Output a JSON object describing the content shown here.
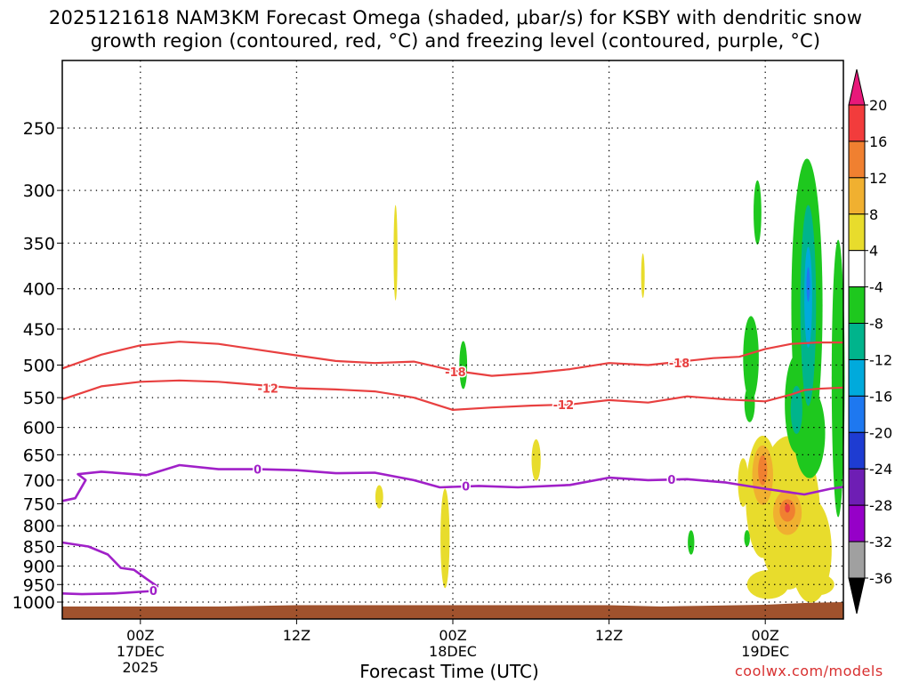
{
  "title_line1": "2025121618 NAM3KM Forecast Omega (shaded, μbar/s) for KSBY with dendritic snow",
  "title_line2": "growth region (contoured, red, °C) and freezing level (contoured, purple, °C)",
  "xlabel": "Forecast Time (UTC)",
  "credit": "coolwx.com/models",
  "chart_data": {
    "type": "area",
    "x_range_hours_from_start": [
      0,
      60
    ],
    "yaxis": {
      "type": "pressure (log scale, inverted)",
      "ticks": [
        250,
        300,
        350,
        400,
        450,
        500,
        550,
        600,
        650,
        700,
        750,
        800,
        850,
        900,
        950,
        1000
      ]
    },
    "xaxis_ticks": [
      {
        "hour": 6,
        "lines": [
          "00Z",
          "17DEC",
          "2025"
        ]
      },
      {
        "hour": 18,
        "lines": [
          "12Z"
        ]
      },
      {
        "hour": 30,
        "lines": [
          "00Z",
          "18DEC"
        ]
      },
      {
        "hour": 42,
        "lines": [
          "12Z"
        ]
      },
      {
        "hour": 54,
        "lines": [
          "00Z",
          "19DEC"
        ]
      }
    ],
    "colorbar": {
      "labels": [
        "20",
        "16",
        "12",
        "8",
        "4",
        "-4",
        "-8",
        "-12",
        "-16",
        "-20",
        "-24",
        "-28",
        "-32",
        "-36"
      ],
      "colors": [
        "#e8187a",
        "#f23c3c",
        "#f08030",
        "#f0b030",
        "#e8dc2c",
        "#ffffff",
        "#1ec81e",
        "#00b48c",
        "#00aadc",
        "#1e78f0",
        "#1e3cd2",
        "#6e1eb4",
        "#9600c8",
        "#a0a0a0",
        "#000000"
      ]
    },
    "contours": [
      {
        "label": "-18",
        "color": "#e84040",
        "points": [
          [
            0,
            505
          ],
          [
            3,
            485
          ],
          [
            6,
            472
          ],
          [
            9,
            467
          ],
          [
            12,
            470
          ],
          [
            15,
            478
          ],
          [
            18,
            486
          ],
          [
            21,
            494
          ],
          [
            24,
            497
          ],
          [
            27,
            495
          ],
          [
            30,
            508
          ],
          [
            33,
            516
          ],
          [
            36,
            512
          ],
          [
            39,
            506
          ],
          [
            42,
            497
          ],
          [
            45,
            500
          ],
          [
            47,
            496
          ],
          [
            50,
            490
          ],
          [
            52,
            488
          ],
          [
            54,
            477
          ],
          [
            56,
            470
          ],
          [
            58,
            468
          ],
          [
            60,
            468
          ]
        ]
      },
      {
        "label": "-12",
        "color": "#e84040",
        "points": [
          [
            0,
            553
          ],
          [
            3,
            532
          ],
          [
            6,
            525
          ],
          [
            9,
            523
          ],
          [
            12,
            525
          ],
          [
            15,
            530
          ],
          [
            18,
            535
          ],
          [
            21,
            537
          ],
          [
            24,
            540
          ],
          [
            27,
            550
          ],
          [
            30,
            570
          ],
          [
            33,
            566
          ],
          [
            36,
            563
          ],
          [
            39,
            561
          ],
          [
            42,
            554
          ],
          [
            45,
            558
          ],
          [
            48,
            548
          ],
          [
            51,
            553
          ],
          [
            54,
            556
          ],
          [
            56,
            545
          ],
          [
            57,
            538
          ],
          [
            58,
            536
          ],
          [
            60,
            534
          ]
        ]
      },
      {
        "label": "0",
        "color": "#a020c8",
        "points": [
          [
            6.5,
            690
          ],
          [
            9,
            670
          ],
          [
            12,
            678
          ],
          [
            15,
            678
          ],
          [
            18,
            680
          ],
          [
            21,
            686
          ],
          [
            24,
            685
          ],
          [
            27,
            700
          ],
          [
            29,
            715
          ],
          [
            32,
            712
          ],
          [
            35,
            715
          ],
          [
            39,
            710
          ],
          [
            42,
            695
          ],
          [
            45,
            700
          ],
          [
            48,
            698
          ],
          [
            51,
            705
          ],
          [
            54,
            718
          ],
          [
            57,
            730
          ],
          [
            59,
            718
          ],
          [
            60,
            714
          ]
        ]
      },
      {
        "label": "0",
        "color": "#a020c8",
        "points": [
          [
            0,
            744
          ],
          [
            1,
            738
          ],
          [
            1.8,
            700
          ],
          [
            1.2,
            688
          ],
          [
            3,
            683
          ],
          [
            6.5,
            690
          ]
        ]
      },
      {
        "label": "0",
        "color": "#a020c8",
        "points": [
          [
            0,
            840
          ],
          [
            2,
            850
          ],
          [
            3.5,
            870
          ],
          [
            4.5,
            905
          ],
          [
            5.5,
            910
          ],
          [
            6.5,
            935
          ],
          [
            7.3,
            955
          ],
          [
            7,
            968
          ],
          [
            4,
            975
          ],
          [
            1.5,
            977
          ],
          [
            0,
            975
          ]
        ]
      }
    ],
    "omega_areas": [
      {
        "value_range": "4 to 8",
        "time_hours": [
          25.5,
          25.7
        ],
        "pressure_range": [
          307,
          410
        ]
      },
      {
        "value_range": "4 to 8",
        "time_hours": [
          44.5,
          44.7
        ],
        "pressure_range": [
          360,
          410
        ]
      },
      {
        "value_range": "4 to 8",
        "time_hours": [
          29.0,
          29.8
        ],
        "pressure_range": [
          700,
          940
        ]
      },
      {
        "value_range": "4 to 8",
        "time_hours": [
          24.0,
          24.7
        ],
        "pressure_range": [
          700,
          760
        ]
      },
      {
        "value_range": "4 to 8",
        "time_hours": [
          36.0,
          36.8
        ],
        "pressure_range": [
          620,
          700
        ]
      },
      {
        "value_range": "4 to 20",
        "time_hours": [
          51.5,
          59.5
        ],
        "pressure_range": [
          620,
          990
        ]
      },
      {
        "value_range": "-4 to -8",
        "time_hours": [
          30.5,
          31.5
        ],
        "pressure_range": [
          470,
          560
        ]
      },
      {
        "value_range": "-4 to -8",
        "time_hours": [
          48.0,
          48.7
        ],
        "pressure_range": [
          820,
          900
        ]
      },
      {
        "value_range": "-4 to -8",
        "time_hours": [
          52.5,
          53.5
        ],
        "pressure_range": [
          810,
          860
        ]
      },
      {
        "value_range": "-4 to -12",
        "time_hours": [
          52.0,
          54.5
        ],
        "pressure_range": [
          450,
          560
        ]
      },
      {
        "value_range": "-4 to -20",
        "time_hours": [
          55.0,
          60.0
        ],
        "pressure_range": [
          265,
          700
        ]
      }
    ],
    "grid": true
  }
}
